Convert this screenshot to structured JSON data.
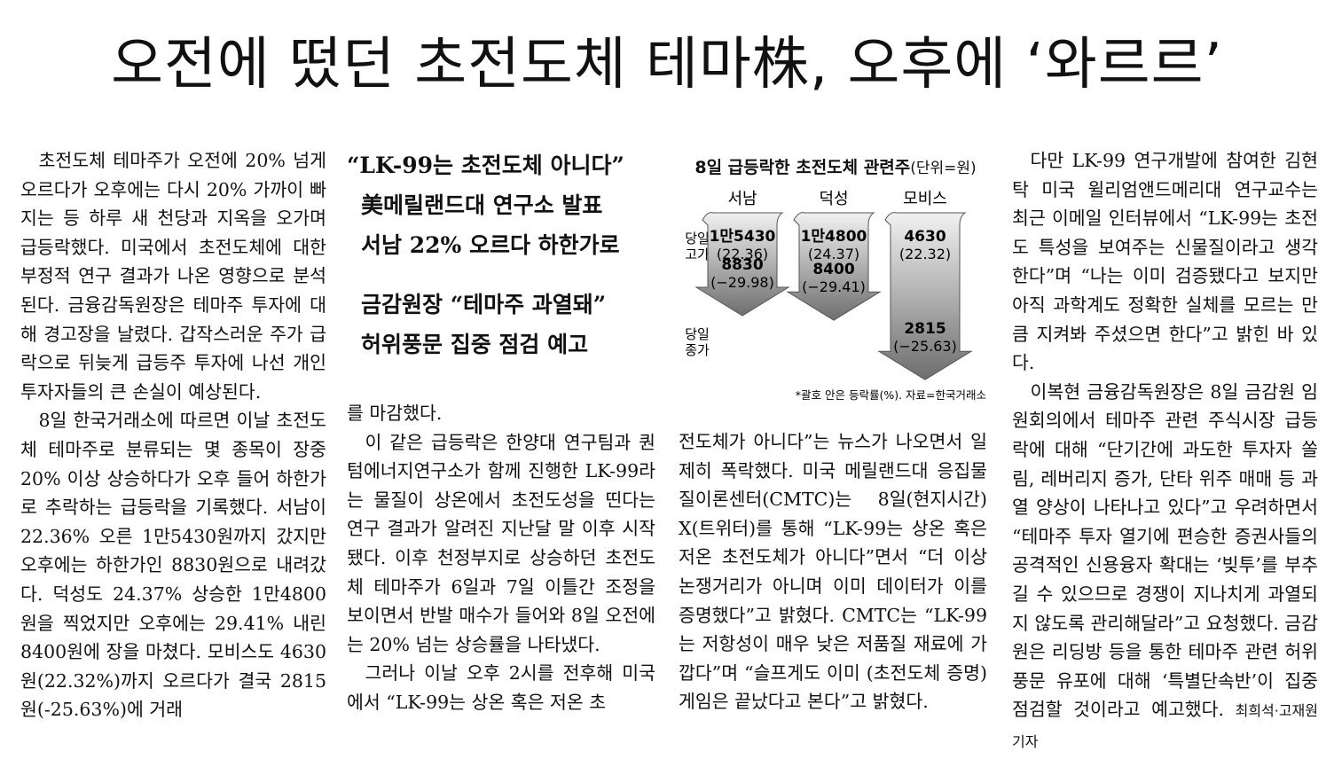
{
  "headline": "오전에 떴던 초전도체 테마株, 오후에 ‘와르르’",
  "subheads": [
    "“LK-99는 초전도체 아니다”",
    "美메릴랜드대 연구소 발표",
    "서남 22% 오르다 하한가로",
    "금감원장 “테마주 과열돼”",
    "허위풍문 집중 점검 예고"
  ],
  "col1": [
    "초전도체 테마주가 오전에 20% 넘게 오르다가 오후에는 다시 20% 가까이 빠지는 등 하루 새 천당과 지옥을 오가며 급등락했다. 미국에서 초전도체에 대한 부정적 연구 결과가 나온 영향으로 분석된다. 금융감독원장은 테마주 투자에 대해 경고장을 날렸다. 갑작스러운 주가 급락으로 뒤늦게 급등주 투자에 나선 개인투자자들의 큰 손실이 예상된다.",
    "8일 한국거래소에 따르면 이날 초전도체 테마주로 분류되는 몇 종목이 장중 20% 이상 상승하다가 오후 들어 하한가로 추락하는 급등락을 기록했다. 서남이 22.36% 오른 1만5430원까지 갔지만 오후에는 하한가인 8830원으로 내려갔다. 덕성도 24.37% 상승한 1만4800원을 찍었지만 오후에는 29.41% 내린 8400원에 장을 마쳤다. 모비스도 4630원(22.32%)까지 오르다가 결국 2815원(-25.63%)에 거래"
  ],
  "col2": [
    "를 마감했다.",
    "이 같은 급등락은 한양대 연구팀과 퀀텀에너지연구소가 함께 진행한 LK-99라는 물질이 상온에서 초전도성을 띤다는 연구 결과가 알려진 지난달 말 이후 시작됐다. 이후 천정부지로 상승하던 초전도체 테마주가 6일과 7일 이틀간 조정을 보이면서 반발 매수가 들어와 8일 오전에는 20% 넘는 상승률을 나타냈다.",
    "그러나 이날 오후 2시를 전후해 미국에서 “LK-99는 상온 혹은 저온 초"
  ],
  "col3": [
    "전도체가 아니다”는 뉴스가 나오면서 일제히 폭락했다. 미국 메릴랜드대 응집물질이론센터(CMTC)는 8일(현지시간) X(트위터)를 통해 “LK-99는 상온 혹은 저온 초전도체가 아니다”면서 “더 이상 논쟁거리가 아니며 이미 데이터가 이를 증명했다”고 밝혔다. CMTC는 “LK-99는 저항성이 매우 낮은 저품질 재료에 가깝다”며 “슬프게도 이미 (초전도체 증명) 게임은 끝났다고 본다”고 밝혔다."
  ],
  "col4": [
    "다만 LK-99 연구개발에 참여한 김현탁 미국 윌리엄앤드메리대 연구교수는 최근 이메일 인터뷰에서 “LK-99는 초전도 특성을 보여주는 신물질이라고 생각한다”며 “나는 이미 검증됐다고 보지만 아직 과학계도 정확한 실체를 모르는 만큼 지켜봐 주셨으면 한다”고 밝힌 바 있다.",
    "이복현 금융감독원장은 8일 금감원 임원회의에서 테마주 관련 주식시장 급등락에 대해 “단기간에 과도한 투자자 쏠림, 레버리지 증가, 단타 위주 매매 등 과열 양상이 나타나고 있다”고 우려하면서 “테마주 투자 열기에 편승한 증권사들의 공격적인 신용융자 확대는 ‘빚투’를 부추길 수 있으므로 경쟁이 지나치게 과열되지 않도록 관리해달라”고 요청했다. 금감원은 리딩방 등을 통한 테마주 관련 허위 풍문 유포에 대해 ‘특별단속반’이 집중 점검할 것이라고 예고했다."
  ],
  "byline": "최희석·고재원 기자",
  "chart_data": {
    "type": "bar",
    "title": "8일 급등락한 초전도체 관련주",
    "unit": "(단위=원)",
    "row_labels": {
      "high": "당일\n고가",
      "close": "당일\n종가"
    },
    "categories": [
      "서남",
      "덕성",
      "모비스"
    ],
    "high": [
      15430,
      14800,
      4630
    ],
    "high_labels": [
      "1만5430",
      "1만4800",
      "4630"
    ],
    "high_pct_labels": [
      "(22.36)",
      "(24.37)",
      "(22.32)"
    ],
    "close": [
      8830,
      8400,
      2815
    ],
    "close_labels": [
      "8830",
      "8400",
      "2815"
    ],
    "close_pct_labels": [
      "(−29.98)",
      "(−29.41)",
      "(−25.63)"
    ],
    "note": "*괄호 안은 등락률(%). 자료=한국거래소",
    "colors": {
      "arrow_top": "#f2f2f2",
      "arrow_bottom": "#6e6e6e",
      "outline": "#555555"
    }
  }
}
